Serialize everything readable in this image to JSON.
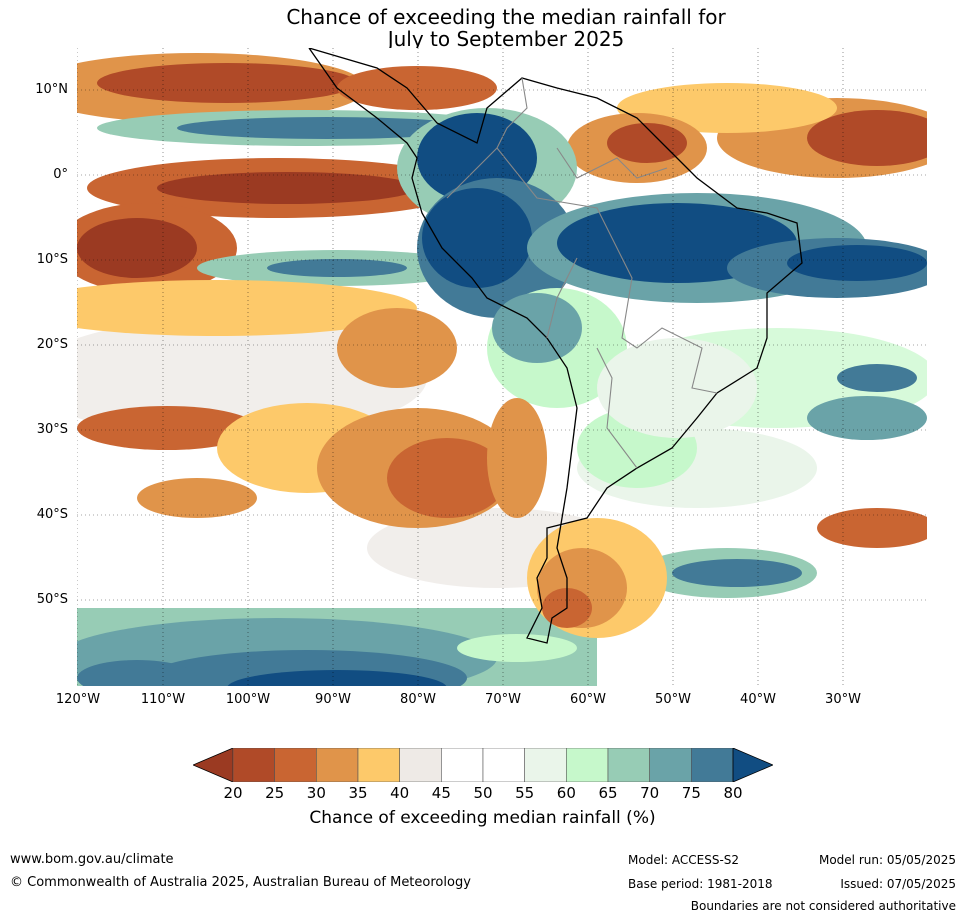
{
  "title": {
    "line1": "Chance of exceeding the median rainfall for",
    "line2": "July to September 2025"
  },
  "map": {
    "region": "South America",
    "lat_labels": [
      "10°N",
      "0°",
      "10°S",
      "20°S",
      "30°S",
      "40°S",
      "50°S"
    ],
    "lon_labels": [
      "120°W",
      "110°W",
      "100°W",
      "90°W",
      "80°W",
      "70°W",
      "60°W",
      "50°W",
      "40°W",
      "30°W"
    ]
  },
  "colorbar": {
    "ticks": [
      "20",
      "25",
      "30",
      "35",
      "40",
      "45",
      "50",
      "55",
      "60",
      "65",
      "70",
      "75",
      "80"
    ],
    "colors": [
      "#9b3a22",
      "#b04a28",
      "#c96532",
      "#e0944a",
      "#fdc96a",
      "#eeeae6",
      "#ffffff",
      "#ffffff",
      "#eaf5ea",
      "#c6f8cb",
      "#97ccb5",
      "#6aa3a8",
      "#427a97",
      "#114d82"
    ],
    "label": "Chance of exceeding median rainfall (%)"
  },
  "footer": {
    "url": "www.bom.gov.au/climate",
    "copyright": "© Commonwealth of Australia 2025, Australian Bureau of Meteorology",
    "model": "Model: ACCESS-S2",
    "base_period": "Base period: 1981-2018",
    "model_run": "Model run: 05/05/2025",
    "issued": "Issued: 07/05/2025",
    "disclaimer": "Boundaries are not considered authoritative"
  }
}
